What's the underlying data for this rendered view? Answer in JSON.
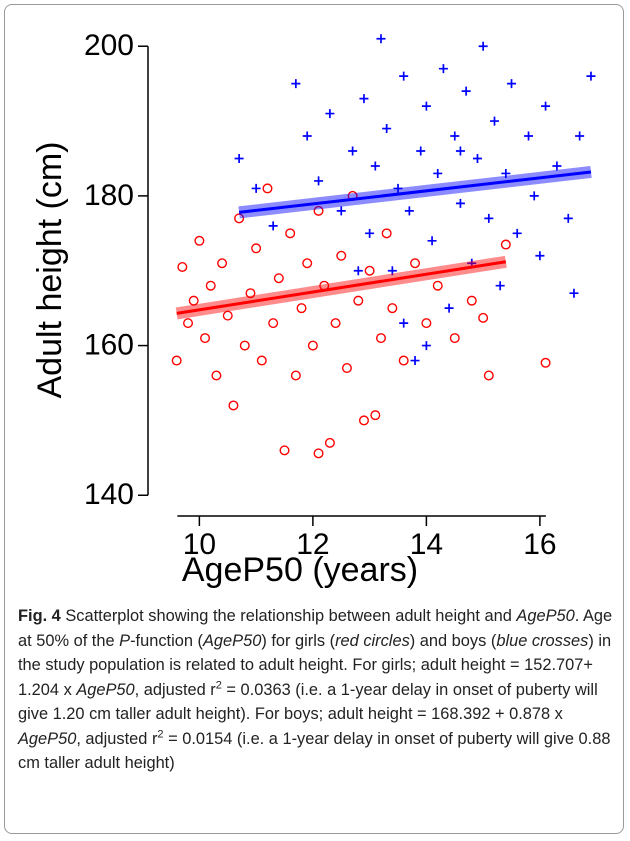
{
  "chart_data": {
    "type": "scatter",
    "xlabel": "AgeP50 (years)",
    "ylabel": "Adult height (cm)",
    "xlim": [
      9.5,
      17.2
    ],
    "ylim": [
      139.5,
      201.5
    ],
    "xticks": [
      10,
      12,
      14,
      16
    ],
    "yticks": [
      140,
      160,
      180,
      200
    ],
    "series": [
      {
        "color": "#0000ff",
        "marker": "plus",
        "x": [
          10.7,
          11.0,
          11.3,
          11.7,
          11.9,
          12.1,
          12.3,
          12.5,
          12.7,
          12.9,
          13.0,
          13.1,
          13.2,
          13.3,
          13.4,
          13.5,
          13.6,
          13.7,
          13.8,
          13.9,
          14.0,
          14.1,
          14.2,
          14.3,
          14.4,
          14.5,
          14.6,
          14.7,
          14.8,
          14.9,
          15.0,
          15.1,
          15.2,
          15.3,
          15.4,
          15.5,
          15.6,
          15.8,
          15.9,
          16.0,
          16.1,
          16.3,
          16.5,
          16.6,
          16.7,
          16.9,
          12.8,
          13.6,
          14.0,
          14.6
        ],
        "values": [
          185,
          181,
          176,
          195,
          188,
          182,
          191,
          178,
          186,
          193,
          175,
          184,
          201,
          189,
          170,
          181,
          196,
          178,
          158,
          186,
          192,
          174,
          183,
          197,
          165,
          188,
          179,
          194,
          171,
          185,
          200,
          177,
          190,
          168,
          183,
          195,
          175,
          188,
          180,
          172,
          192,
          184,
          177,
          167,
          188,
          196,
          170,
          163,
          160,
          186
        ],
        "fit_x": [
          10.7,
          16.9
        ],
        "fit_values": [
          177.8,
          183.2
        ]
      },
      {
        "color": "#ff0000",
        "marker": "circle",
        "x": [
          9.6,
          9.7,
          9.8,
          9.9,
          10.0,
          10.1,
          10.2,
          10.3,
          10.4,
          10.5,
          10.6,
          10.7,
          10.8,
          10.9,
          11.0,
          11.1,
          11.2,
          11.3,
          11.4,
          11.5,
          11.6,
          11.7,
          11.8,
          11.9,
          12.0,
          12.1,
          12.1,
          12.2,
          12.3,
          12.4,
          12.5,
          12.6,
          12.7,
          12.8,
          12.9,
          13.0,
          13.1,
          13.2,
          13.3,
          13.4,
          13.6,
          13.8,
          14.0,
          14.2,
          14.5,
          14.8,
          15.0,
          15.1,
          15.4,
          16.1
        ],
        "values": [
          158,
          170.5,
          163,
          166,
          174,
          161,
          168,
          156,
          171,
          164,
          152,
          177,
          160,
          167,
          173,
          158,
          181,
          163,
          169,
          146,
          175,
          156,
          165,
          171,
          160,
          145.6,
          178,
          168,
          147,
          163,
          172,
          157,
          180,
          166,
          150,
          170,
          150.7,
          161,
          175,
          165,
          158,
          171,
          163,
          168,
          161,
          166,
          163.7,
          156,
          173.5,
          157.7
        ],
        "fit_x": [
          9.6,
          15.4
        ],
        "fit_values": [
          164.3,
          171.2
        ]
      }
    ]
  },
  "caption": {
    "segments": [
      {
        "text": "Fig. 4",
        "style": "bold"
      },
      {
        "text": " Scatterplot showing the relationship between adult height and "
      },
      {
        "text": "AgeP50",
        "style": "italic"
      },
      {
        "text": ". Age at 50% of the "
      },
      {
        "text": "P",
        "style": "italic"
      },
      {
        "text": "-function ("
      },
      {
        "text": "AgeP50",
        "style": "italic"
      },
      {
        "text": ") for girls ("
      },
      {
        "text": "red circles",
        "style": "italic"
      },
      {
        "text": ") and boys ("
      },
      {
        "text": "blue crosses",
        "style": "italic"
      },
      {
        "text": ") in the study population is related to adult height. For girls; adult height = 152.707+ 1.204 x "
      },
      {
        "text": "AgeP50",
        "style": "italic"
      },
      {
        "text": ", adjusted r"
      },
      {
        "text": "2",
        "style": "sup"
      },
      {
        "text": " = 0.0363 (i.e. a 1-year delay in onset of puberty will give 1.20 cm taller adult height). For boys; adult height = 168.392 + 0.878 x "
      },
      {
        "text": "AgeP50",
        "style": "italic"
      },
      {
        "text": ", adjusted r"
      },
      {
        "text": "2",
        "style": "sup"
      },
      {
        "text": " = 0.0154 (i.e. a 1-year delay in onset of puberty will give 0.88 cm taller adult height)"
      }
    ]
  }
}
